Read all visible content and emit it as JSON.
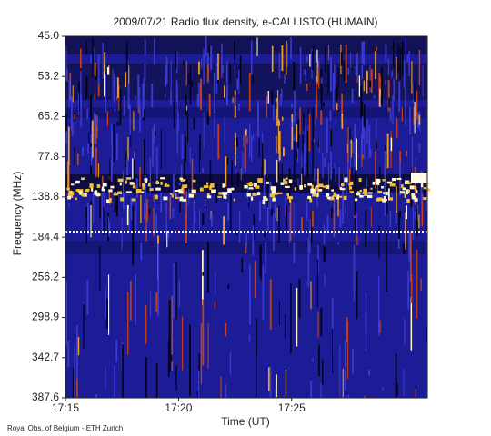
{
  "chart_data": {
    "type": "spectrogram",
    "title": "2009/07/21  Radio flux density, e-CALLISTO (HUMAIN)",
    "xlabel": "Time (UT)",
    "ylabel": "Frequency (MHz)",
    "footer": "Royal Obs. of Belgium - ETH Zurich",
    "xlim": [
      "17:15",
      "17:31"
    ],
    "xticks": [
      "17:15",
      "17:20",
      "17:25"
    ],
    "yticks": [
      {
        "value": 45.0,
        "label": "45.0"
      },
      {
        "value": 53.2,
        "label": "53.2"
      },
      {
        "value": 65.2,
        "label": "65.2"
      },
      {
        "value": 77.8,
        "label": "77.8"
      },
      {
        "value": 138.8,
        "label": "138.8"
      },
      {
        "value": 184.4,
        "label": "184.4"
      },
      {
        "value": 256.2,
        "label": "256.2"
      },
      {
        "value": 298.9,
        "label": "298.9"
      },
      {
        "value": 342.7,
        "label": "342.7"
      },
      {
        "value": 387.6,
        "label": "387.6"
      }
    ]
  }
}
